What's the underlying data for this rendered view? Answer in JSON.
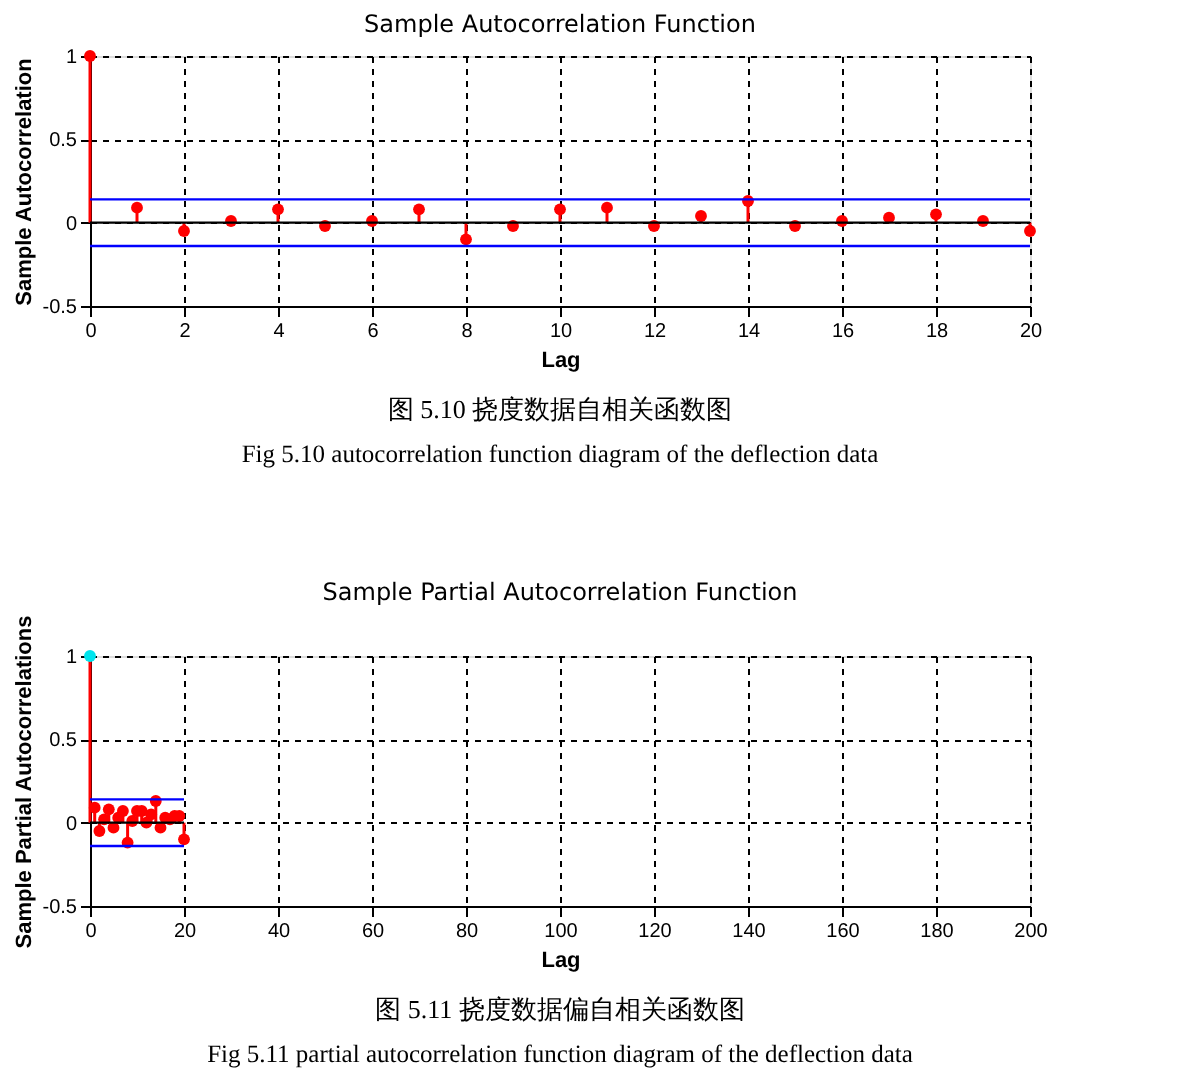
{
  "chart_data": [
    {
      "type": "lollipop",
      "title": "Sample Autocorrelation Function",
      "xlabel": "Lag",
      "ylabel": "Sample Autocorrelation",
      "x": [
        0,
        1,
        2,
        3,
        4,
        5,
        6,
        7,
        8,
        9,
        10,
        11,
        12,
        13,
        14,
        15,
        16,
        17,
        18,
        19,
        20
      ],
      "series": [
        {
          "color": "#ff0000",
          "values": [
            1,
            0.09,
            -0.05,
            0.01,
            0.08,
            -0.02,
            0.01,
            0.08,
            -0.1,
            -0.02,
            0.08,
            0.09,
            -0.02,
            0.04,
            0.13,
            -0.02,
            0.01,
            0.03,
            0.05,
            0.01,
            -0.05
          ]
        }
      ],
      "xlim": [
        0,
        20
      ],
      "xticks": [
        0,
        2,
        4,
        6,
        8,
        10,
        12,
        14,
        16,
        18,
        20
      ],
      "ylim": [
        -0.5,
        1
      ],
      "yticks": [
        -0.5,
        0,
        0.5,
        1
      ],
      "ref_lines": [
        {
          "axis": "y",
          "value": 0.14,
          "color": "#0000ff"
        },
        {
          "axis": "y",
          "value": -0.14,
          "color": "#0000ff"
        },
        {
          "axis": "y",
          "value": 0,
          "color": "#000000"
        }
      ],
      "grid": true,
      "marker": "circle",
      "annotations": [
        "图 5.10 挠度数据自相关函数图",
        "Fig 5.10 autocorrelation function diagram of the deflection data"
      ]
    },
    {
      "type": "lollipop",
      "title": "Sample Partial Autocorrelation Function",
      "xlabel": "Lag",
      "ylabel": "Sample Partial Autocorrelations",
      "x": [
        0,
        1,
        2,
        3,
        4,
        5,
        6,
        7,
        8,
        9,
        10,
        11,
        12,
        13,
        14,
        15,
        16,
        17,
        18,
        19,
        20
      ],
      "series": [
        {
          "color": "#ff0000",
          "colors": [
            "#00e5ee",
            "#ff0000",
            "#ff0000",
            "#ff0000",
            "#ff0000",
            "#ff0000",
            "#ff0000",
            "#ff0000",
            "#ff0000",
            "#ff0000",
            "#ff0000",
            "#ff0000",
            "#ff0000",
            "#ff0000",
            "#ff0000",
            "#ff0000",
            "#ff0000",
            "#ff0000",
            "#ff0000",
            "#ff0000",
            "#ff0000"
          ],
          "values": [
            1,
            0.09,
            -0.05,
            0.02,
            0.08,
            -0.03,
            0.03,
            0.07,
            -0.12,
            0.01,
            0.07,
            0.07,
            0.0,
            0.05,
            0.13,
            -0.03,
            0.03,
            0.02,
            0.04,
            0.04,
            -0.1
          ]
        }
      ],
      "xlim": [
        0,
        200
      ],
      "xticks": [
        0,
        20,
        40,
        60,
        80,
        100,
        120,
        140,
        160,
        180,
        200
      ],
      "ylim": [
        -0.5,
        1
      ],
      "yticks": [
        -0.5,
        0,
        0.5,
        1
      ],
      "ref_lines": [
        {
          "axis": "y",
          "value": 0.14,
          "color": "#0000ff"
        },
        {
          "axis": "y",
          "value": -0.14,
          "color": "#0000ff"
        },
        {
          "axis": "y",
          "value": 0,
          "color": "#000000"
        }
      ],
      "grid": true,
      "marker": "circle",
      "annotations": [
        "图 5.11 挠度数据偏自相关函数图",
        "Fig 5.11 partial autocorrelation function diagram of the deflection data"
      ]
    }
  ]
}
